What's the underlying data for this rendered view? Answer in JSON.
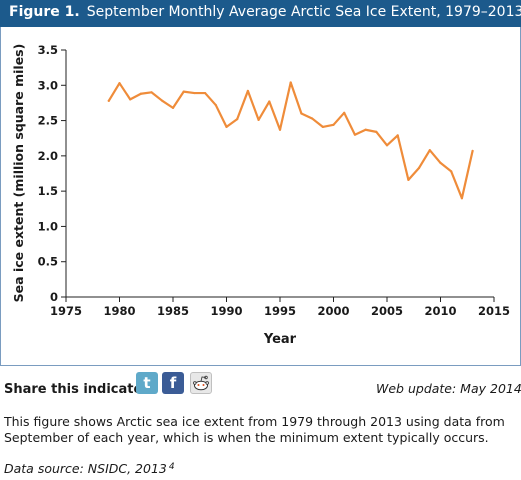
{
  "figure": {
    "label": "Figure 1.",
    "title": "September Monthly Average Arctic Sea Ice Extent, 1979–2013"
  },
  "share": {
    "label": "Share this indicator:",
    "icons": [
      "twitter-icon",
      "facebook-icon",
      "reddit-icon"
    ],
    "twitter_glyph": "t",
    "facebook_glyph": "f"
  },
  "web_update": "Web update: May 2014",
  "description": "This figure shows Arctic sea ice extent from 1979 through 2013 using data from September of each year, which is when the minimum extent typically occurs.",
  "data_source": "Data source: NSIDC, 2013",
  "data_source_ref": "4",
  "colors": {
    "header_bg": "#1c5a8c",
    "line": "#ef8c3a",
    "axis": "#222222",
    "frame": "#7a9cc0"
  },
  "chart_data": {
    "type": "line",
    "title": "",
    "xlabel": "Year",
    "ylabel": "Sea ice extent (million square miles)",
    "xlim": [
      1975,
      2015
    ],
    "ylim": [
      0,
      3.5
    ],
    "x_ticks": [
      1975,
      1980,
      1985,
      1990,
      1995,
      2000,
      2005,
      2010,
      2015
    ],
    "y_ticks": [
      "0",
      "0.5",
      "1.0",
      "1.5",
      "2.0",
      "2.5",
      "3.0",
      "3.5"
    ],
    "grid": false,
    "legend": "none",
    "series": [
      {
        "x": [
          1979,
          1980,
          1981,
          1982,
          1983,
          1984,
          1985,
          1986,
          1987,
          1988,
          1989,
          1990,
          1991,
          1992,
          1993,
          1994,
          1995,
          1996,
          1997,
          1998,
          1999,
          2000,
          2001,
          2002,
          2003,
          2004,
          2005,
          2006,
          2007,
          2008,
          2009,
          2010,
          2011,
          2012,
          2013
        ],
        "values": [
          2.78,
          3.03,
          2.8,
          2.88,
          2.9,
          2.78,
          2.68,
          2.91,
          2.89,
          2.89,
          2.72,
          2.41,
          2.52,
          2.92,
          2.51,
          2.77,
          2.37,
          3.04,
          2.6,
          2.53,
          2.41,
          2.44,
          2.61,
          2.3,
          2.37,
          2.34,
          2.15,
          2.29,
          1.66,
          1.83,
          2.08,
          1.9,
          1.78,
          1.4,
          2.07
        ]
      }
    ]
  }
}
